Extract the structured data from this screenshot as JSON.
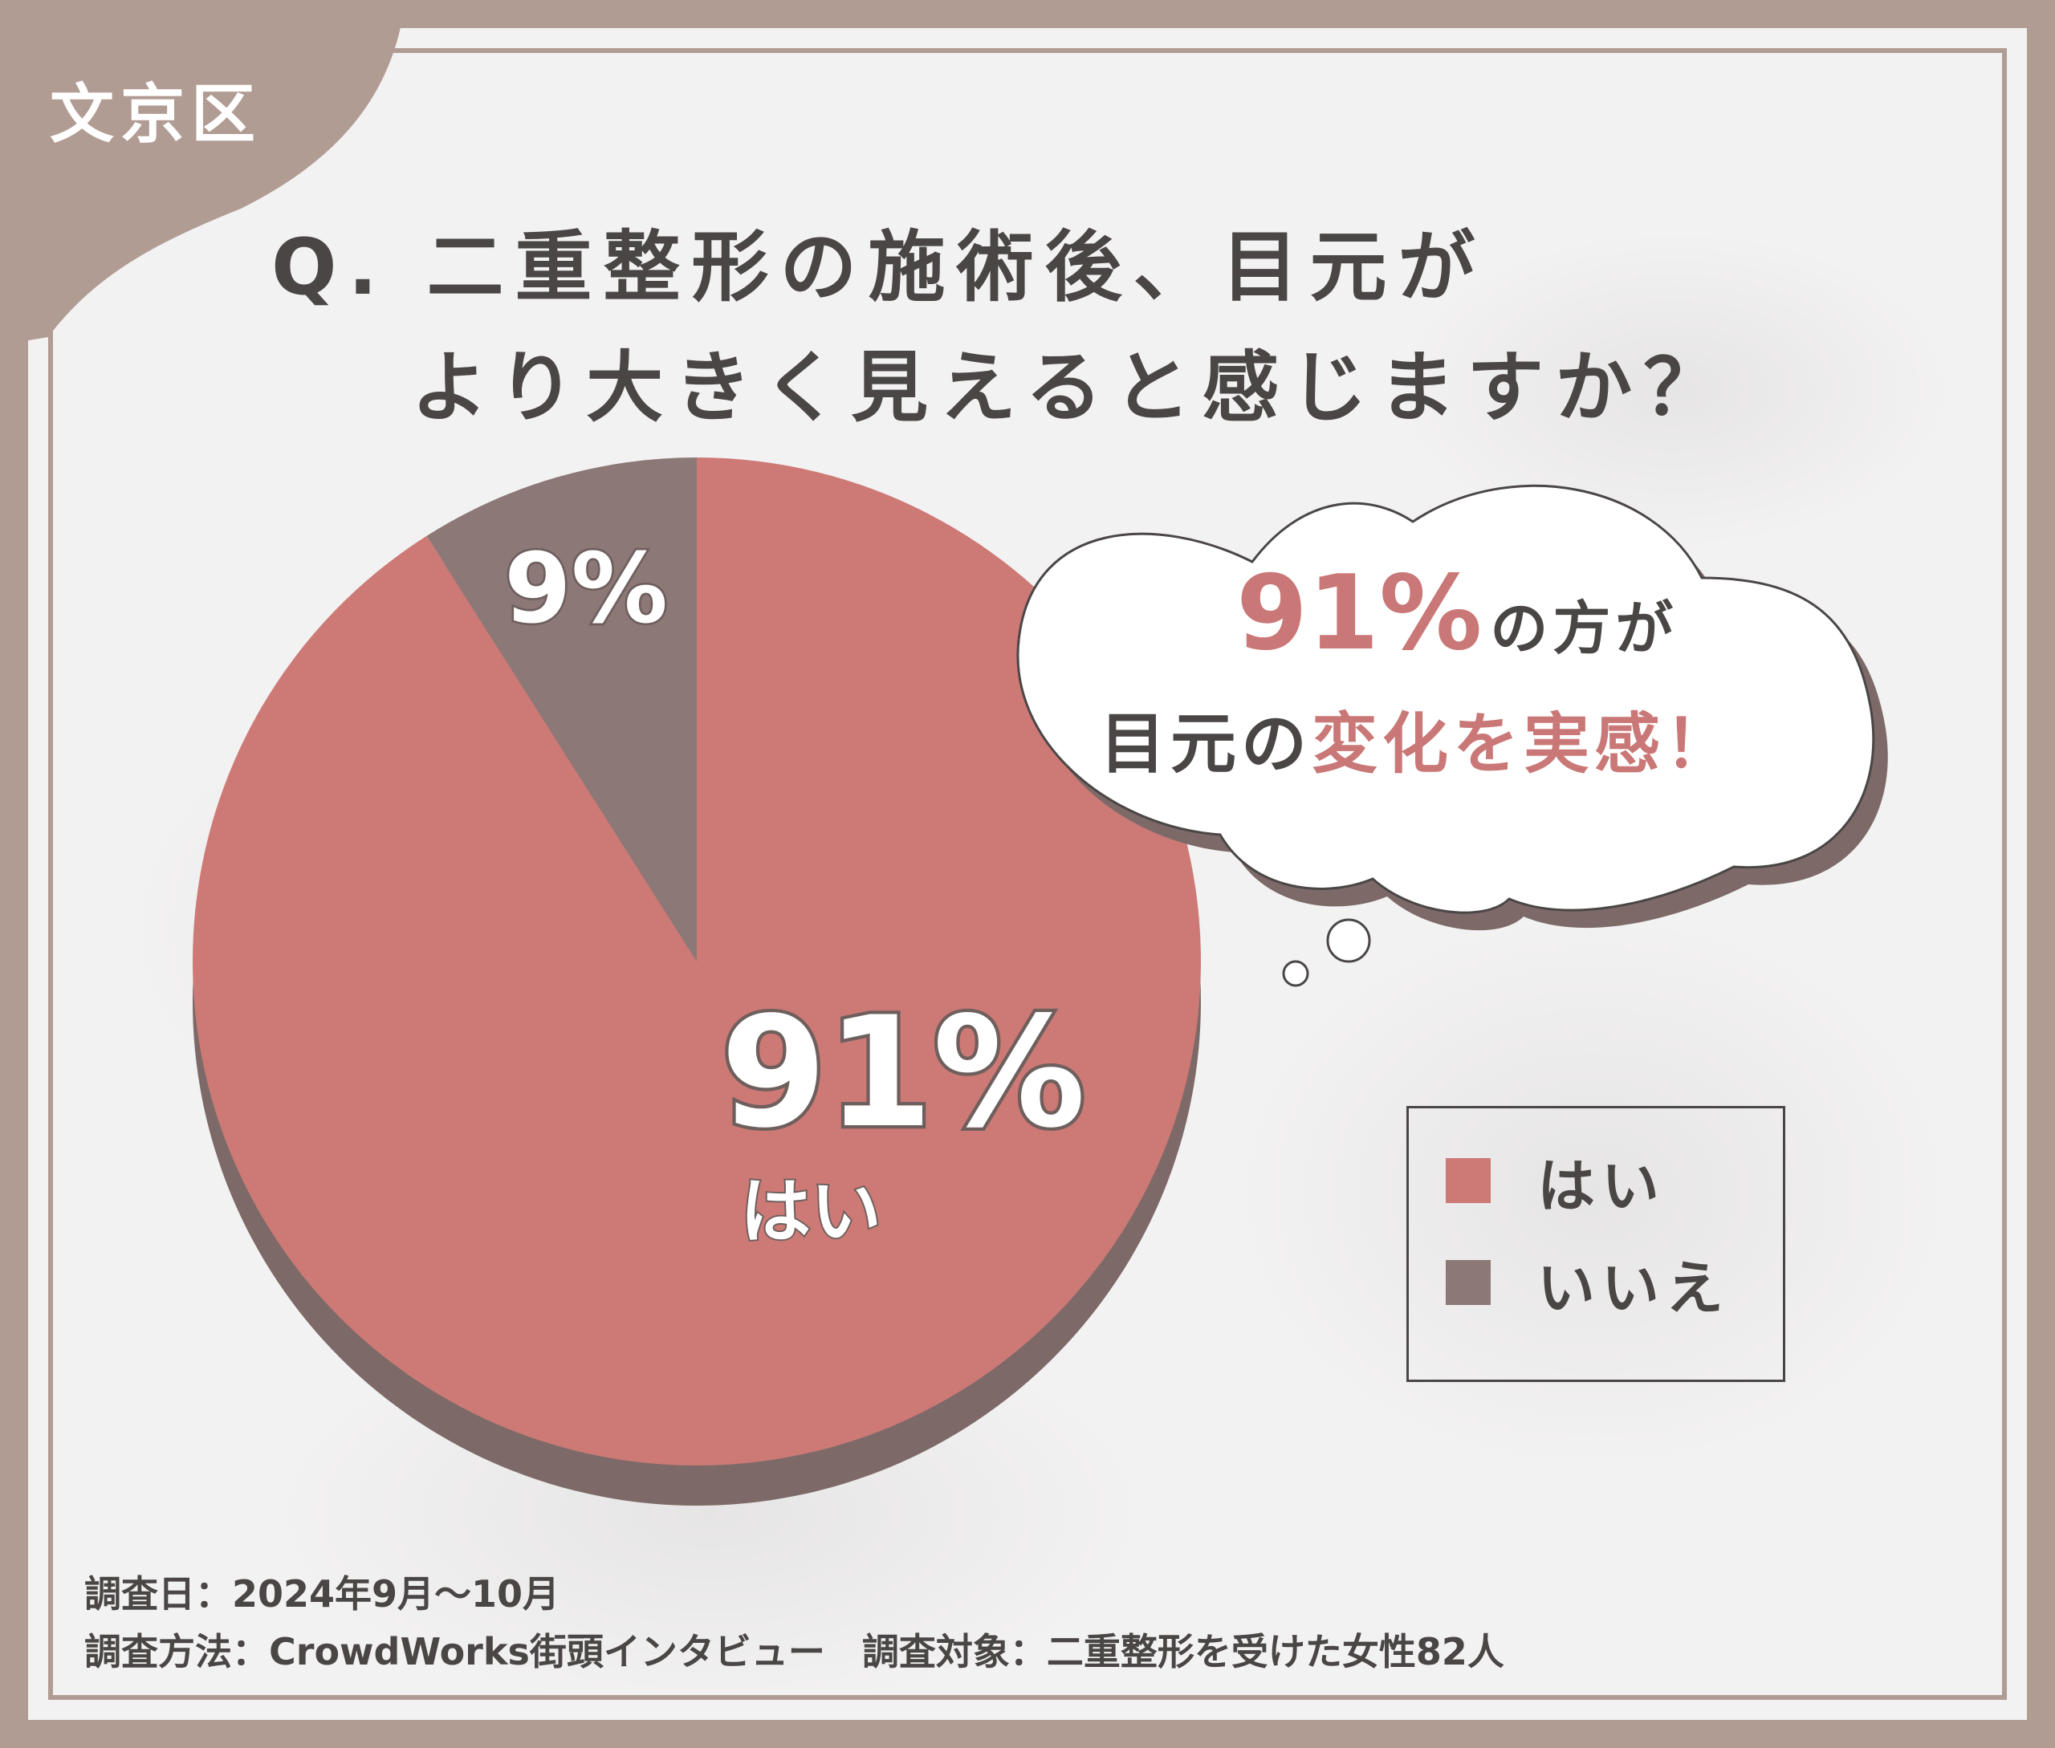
{
  "district": "文京区",
  "question": {
    "line1": "Q. 二重整形の施術後、目元が",
    "line2": "より大きく見えると感じますか？"
  },
  "colors": {
    "yes": "#cd7a76",
    "no": "#8c7877",
    "pie_shadow": "#7d6a68",
    "frame": "#b19c94",
    "text": "#4a4646",
    "accent": "#c97877"
  },
  "chart_data": {
    "type": "pie",
    "categories": [
      "はい",
      "いいえ"
    ],
    "values": [
      91,
      9
    ],
    "slice_labels": [
      {
        "pct": "91%",
        "name": "はい"
      },
      {
        "pct": "9%",
        "name": ""
      }
    ],
    "legend": [
      "はい",
      "いいえ"
    ],
    "legend_position": "right"
  },
  "bubble": {
    "pct": "91%",
    "mid1": "の方が",
    "line2_plain": "目元の",
    "line2_accent": "変化を実感！"
  },
  "legend": {
    "yes_label": "はい",
    "no_label": "いいえ"
  },
  "footer": {
    "line1": "調査日：2024年9月～10月",
    "line2": "調査方法：CrowdWorks街頭インタビュー　調査対象：二重整形を受けた女性82人"
  }
}
